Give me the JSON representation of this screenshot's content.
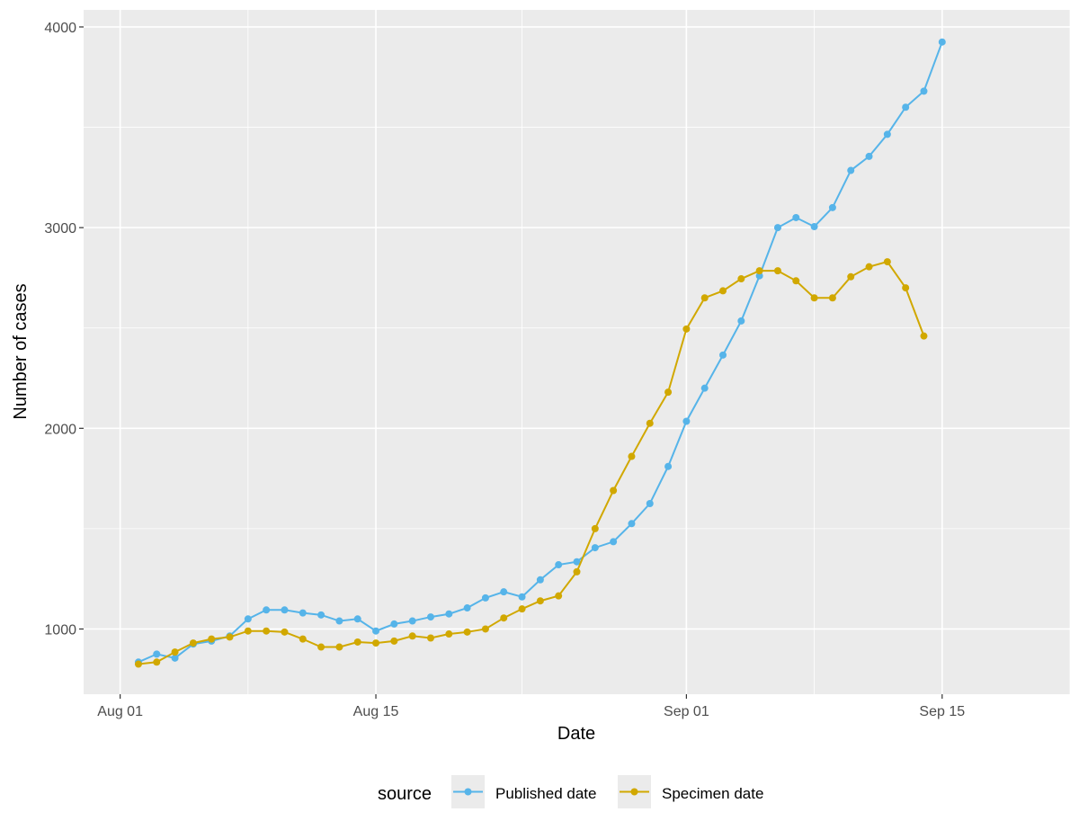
{
  "chart_data": {
    "type": "line",
    "xlabel": "Date",
    "ylabel": "Number of cases",
    "xlim": [
      "2020-07-30",
      "2020-09-22"
    ],
    "ylim": [
      675,
      4085
    ],
    "x_ticks": [
      {
        "date": "2020-08-01",
        "label": "Aug 01"
      },
      {
        "date": "2020-08-15",
        "label": "Aug 15"
      },
      {
        "date": "2020-09-01",
        "label": "Sep 01"
      },
      {
        "date": "2020-09-15",
        "label": "Sep 15"
      }
    ],
    "x_minor_ticks": [
      "2020-08-08",
      "2020-08-23",
      "2020-09-08",
      "2020-09-22"
    ],
    "y_ticks": [
      1000,
      2000,
      3000,
      4000
    ],
    "y_minor_ticks": [
      1500,
      2500,
      3500
    ],
    "grid": true,
    "legend": {
      "title": "source",
      "position": "bottom"
    },
    "series": [
      {
        "name": "Published date",
        "color": "#56B4E9",
        "x": [
          "2020-08-02",
          "2020-08-03",
          "2020-08-04",
          "2020-08-05",
          "2020-08-06",
          "2020-08-07",
          "2020-08-08",
          "2020-08-09",
          "2020-08-10",
          "2020-08-11",
          "2020-08-12",
          "2020-08-13",
          "2020-08-14",
          "2020-08-15",
          "2020-08-16",
          "2020-08-17",
          "2020-08-18",
          "2020-08-19",
          "2020-08-20",
          "2020-08-21",
          "2020-08-22",
          "2020-08-23",
          "2020-08-24",
          "2020-08-25",
          "2020-08-26",
          "2020-08-27",
          "2020-08-28",
          "2020-08-29",
          "2020-08-30",
          "2020-08-31",
          "2020-09-01",
          "2020-09-02",
          "2020-09-03",
          "2020-09-04",
          "2020-09-05",
          "2020-09-06",
          "2020-09-07",
          "2020-09-08",
          "2020-09-09",
          "2020-09-10",
          "2020-09-11",
          "2020-09-12",
          "2020-09-13",
          "2020-09-14",
          "2020-09-15"
        ],
        "values": [
          835,
          875,
          855,
          925,
          940,
          965,
          1050,
          1095,
          1095,
          1080,
          1070,
          1040,
          1050,
          990,
          1025,
          1040,
          1060,
          1075,
          1105,
          1155,
          1185,
          1160,
          1245,
          1320,
          1335,
          1405,
          1435,
          1525,
          1625,
          1810,
          2035,
          2200,
          2365,
          2535,
          2760,
          3000,
          3050,
          3005,
          3100,
          3285,
          3355,
          3465,
          3600,
          3680,
          3925
        ]
      },
      {
        "name": "Specimen date",
        "color": "#D1A800",
        "x": [
          "2020-08-02",
          "2020-08-03",
          "2020-08-04",
          "2020-08-05",
          "2020-08-06",
          "2020-08-07",
          "2020-08-08",
          "2020-08-09",
          "2020-08-10",
          "2020-08-11",
          "2020-08-12",
          "2020-08-13",
          "2020-08-14",
          "2020-08-15",
          "2020-08-16",
          "2020-08-17",
          "2020-08-18",
          "2020-08-19",
          "2020-08-20",
          "2020-08-21",
          "2020-08-22",
          "2020-08-23",
          "2020-08-24",
          "2020-08-25",
          "2020-08-26",
          "2020-08-27",
          "2020-08-28",
          "2020-08-29",
          "2020-08-30",
          "2020-08-31",
          "2020-09-01",
          "2020-09-02",
          "2020-09-03",
          "2020-09-04",
          "2020-09-05",
          "2020-09-06",
          "2020-09-07",
          "2020-09-08",
          "2020-09-09",
          "2020-09-10",
          "2020-09-11",
          "2020-09-12",
          "2020-09-13",
          "2020-09-14"
        ],
        "values": [
          825,
          835,
          885,
          930,
          950,
          960,
          990,
          990,
          985,
          950,
          910,
          910,
          935,
          930,
          940,
          965,
          955,
          975,
          985,
          1000,
          1055,
          1100,
          1140,
          1165,
          1285,
          1500,
          1690,
          1860,
          2025,
          2180,
          2495,
          2650,
          2685,
          2745,
          2785,
          2785,
          2735,
          2650,
          2650,
          2755,
          2805,
          2830,
          2700,
          2460
        ]
      }
    ]
  }
}
